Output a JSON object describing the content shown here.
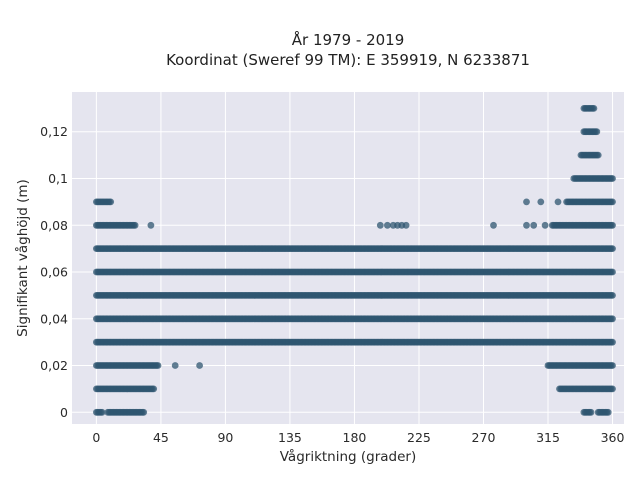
{
  "chart_data": {
    "type": "scatter",
    "title": "År 1979 - 2019",
    "subtitle": "Koordinat (Sweref 99 TM): E 359919, N 6233871",
    "xlabel": "Vågriktning (grader)",
    "ylabel": "Signifikant våghöjd (m)",
    "xlim": [
      -17,
      368
    ],
    "ylim": [
      -0.005,
      0.137
    ],
    "x_ticks": [
      0,
      45,
      90,
      135,
      180,
      225,
      270,
      315,
      360
    ],
    "x_tick_labels": [
      "0",
      "45",
      "90",
      "135",
      "180",
      "225",
      "270",
      "315",
      "360"
    ],
    "y_ticks": [
      0,
      0.02,
      0.04,
      0.06,
      0.08,
      0.1,
      0.12
    ],
    "y_tick_labels": [
      "0",
      "0,02",
      "0,04",
      "0,06",
      "0,08",
      "0,1",
      "0,12"
    ],
    "grid": true,
    "legend": "none",
    "marker_color": "#2f5670",
    "background_color": "#e5e5ef",
    "series": [
      {
        "points_by_height": [
          {
            "y": 0.0,
            "x_ranges": [
              [
                0,
                4
              ],
              [
                8,
                33
              ],
              [
                340,
                345
              ],
              [
                350,
                357
              ]
            ]
          },
          {
            "y": 0.01,
            "x_ranges": [
              [
                0,
                40
              ],
              [
                323,
                360
              ]
            ]
          },
          {
            "y": 0.02,
            "x_ranges": [
              [
                0,
                43
              ],
              [
                315,
                360
              ]
            ]
          },
          {
            "y": 0.03,
            "x_ranges": [
              [
                0,
                360
              ]
            ]
          },
          {
            "y": 0.04,
            "x_ranges": [
              [
                0,
                360
              ]
            ]
          },
          {
            "y": 0.05,
            "x_ranges": [
              [
                0,
                360
              ]
            ]
          },
          {
            "y": 0.06,
            "x_ranges": [
              [
                0,
                360
              ]
            ]
          },
          {
            "y": 0.07,
            "x_ranges": [
              [
                0,
                360
              ]
            ]
          },
          {
            "y": 0.08,
            "x_ranges": [
              [
                0,
                27
              ],
              [
                318,
                360
              ]
            ]
          },
          {
            "y": 0.09,
            "x_ranges": [
              [
                0,
                10
              ],
              [
                328,
                360
              ]
            ]
          },
          {
            "y": 0.1,
            "x_ranges": [
              [
                333,
                360
              ]
            ]
          },
          {
            "y": 0.11,
            "x_ranges": [
              [
                338,
                350
              ]
            ]
          },
          {
            "y": 0.12,
            "x_ranges": [
              [
                340,
                349
              ]
            ]
          },
          {
            "y": 0.13,
            "x_ranges": [
              [
                340,
                347
              ]
            ]
          }
        ],
        "isolated_points": [
          {
            "x": 38,
            "y": 0.08
          },
          {
            "x": 55,
            "y": 0.02
          },
          {
            "x": 72,
            "y": 0.02
          },
          {
            "x": 198,
            "y": 0.08
          },
          {
            "x": 203,
            "y": 0.08
          },
          {
            "x": 207,
            "y": 0.08
          },
          {
            "x": 210,
            "y": 0.08
          },
          {
            "x": 213,
            "y": 0.08
          },
          {
            "x": 216,
            "y": 0.08
          },
          {
            "x": 277,
            "y": 0.08
          },
          {
            "x": 300,
            "y": 0.08
          },
          {
            "x": 305,
            "y": 0.08
          },
          {
            "x": 313,
            "y": 0.08
          },
          {
            "x": 300,
            "y": 0.09
          },
          {
            "x": 310,
            "y": 0.09
          },
          {
            "x": 322,
            "y": 0.09
          }
        ]
      }
    ]
  }
}
